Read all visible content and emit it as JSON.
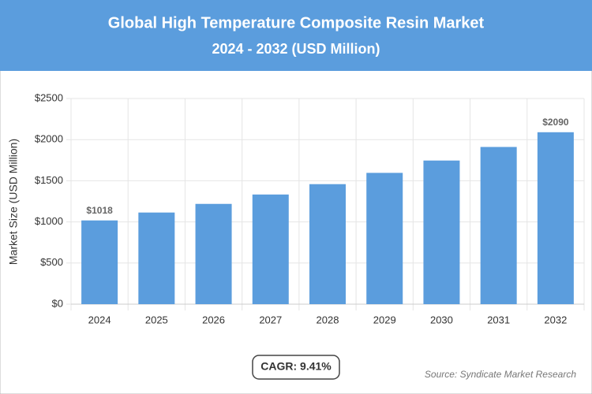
{
  "chart_data": {
    "type": "bar",
    "title": "Global High Temperature Composite Resin Market",
    "subtitle": "2024 - 2032 (USD Million)",
    "y_label": "Market Size (USD Million)",
    "categories": [
      "2024",
      "2025",
      "2026",
      "2027",
      "2028",
      "2029",
      "2030",
      "2031",
      "2032"
    ],
    "values": [
      1018,
      1114,
      1219,
      1333,
      1459,
      1596,
      1746,
      1911,
      2090
    ],
    "value_labels": [
      "$1018",
      null,
      null,
      null,
      null,
      null,
      null,
      null,
      "$2090"
    ],
    "color": "#5b9ddd",
    "ylim": [
      0,
      2500
    ],
    "yticks": [
      {
        "value": 0,
        "label": "$0"
      },
      {
        "value": 500,
        "label": "$500"
      },
      {
        "value": 1000,
        "label": "$1000"
      },
      {
        "value": 1500,
        "label": "$1500"
      },
      {
        "value": 2000,
        "label": "$2000"
      },
      {
        "value": 2500,
        "label": "$2500"
      }
    ],
    "grid": true,
    "cagr": "CAGR: 9.41%",
    "source": "Source: Syndicate Market Research"
  }
}
